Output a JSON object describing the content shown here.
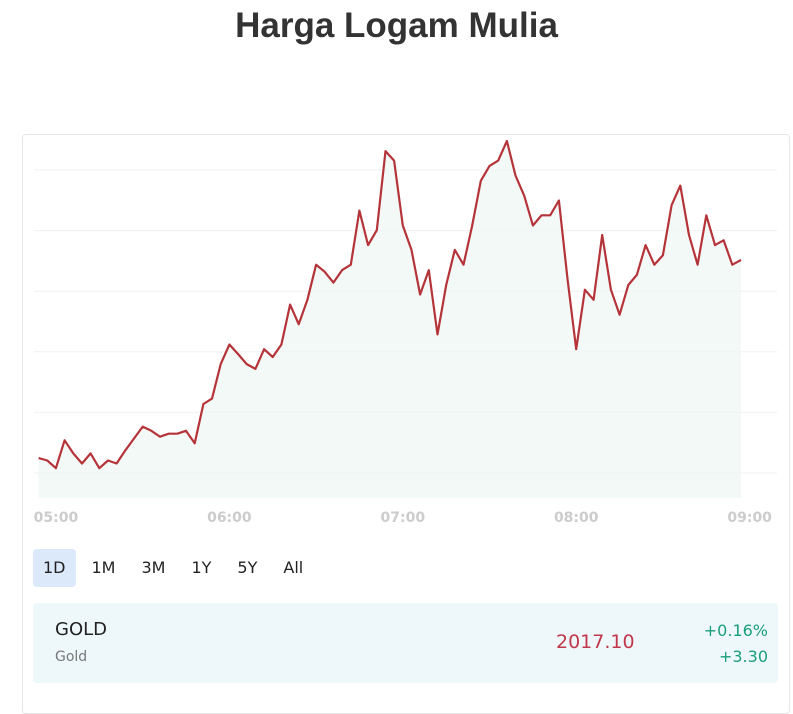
{
  "title": "Harga Logam Mulia",
  "chart_data": {
    "type": "line",
    "x": [
      "04:54",
      "04:57",
      "05:00",
      "05:03",
      "05:06",
      "05:09",
      "05:12",
      "05:15",
      "05:18",
      "05:21",
      "05:24",
      "05:27",
      "05:30",
      "05:33",
      "05:36",
      "05:39",
      "05:42",
      "05:45",
      "05:48",
      "05:51",
      "05:54",
      "05:57",
      "06:00",
      "06:03",
      "06:06",
      "06:09",
      "06:12",
      "06:15",
      "06:18",
      "06:21",
      "06:24",
      "06:27",
      "06:30",
      "06:33",
      "06:36",
      "06:39",
      "06:42",
      "06:45",
      "06:48",
      "06:51",
      "06:54",
      "06:57",
      "07:00",
      "07:03",
      "07:06",
      "07:09",
      "07:12",
      "07:15",
      "07:18",
      "07:21",
      "07:24",
      "07:27",
      "07:30",
      "07:33",
      "07:36",
      "07:39",
      "07:42",
      "07:45",
      "07:48",
      "07:51",
      "07:54",
      "07:57",
      "08:00",
      "08:03",
      "08:06",
      "08:09",
      "08:12",
      "08:15",
      "08:18",
      "08:21",
      "08:24",
      "08:27",
      "08:30",
      "08:33",
      "08:36",
      "08:39",
      "08:42",
      "08:45",
      "08:48",
      "08:51",
      "08:54",
      "08:57"
    ],
    "values": [
      2013.77,
      2013.73,
      2013.6,
      2014.07,
      2013.85,
      2013.68,
      2013.85,
      2013.6,
      2013.73,
      2013.68,
      2013.9,
      2014.1,
      2014.3,
      2014.23,
      2014.13,
      2014.18,
      2014.18,
      2014.23,
      2014.02,
      2014.68,
      2014.77,
      2015.35,
      2015.68,
      2015.52,
      2015.35,
      2015.27,
      2015.6,
      2015.47,
      2015.68,
      2016.35,
      2016.02,
      2016.43,
      2017.02,
      2016.9,
      2016.72,
      2016.93,
      2017.02,
      2017.93,
      2017.35,
      2017.6,
      2018.93,
      2018.77,
      2017.68,
      2017.27,
      2016.52,
      2016.93,
      2015.85,
      2016.68,
      2017.27,
      2017.02,
      2017.68,
      2018.43,
      2018.68,
      2018.77,
      2019.1,
      2018.52,
      2018.18,
      2017.68,
      2017.85,
      2017.85,
      2018.1,
      2016.77,
      2015.6,
      2016.6,
      2016.43,
      2017.52,
      2016.6,
      2016.18,
      2016.68,
      2016.85,
      2017.35,
      2017.02,
      2017.18,
      2018.02,
      2018.35,
      2017.52,
      2017.02,
      2017.85,
      2017.35,
      2017.43,
      2017.02,
      2017.1
    ],
    "color": "#b5343a",
    "xlim": [
      "04:54",
      "09:06"
    ],
    "xticks": [
      "05:00",
      "06:00",
      "07:00",
      "08:00",
      "09:00"
    ],
    "ylim": [
      2013.1,
      2019.2
    ]
  },
  "range_buttons": [
    "1D",
    "1M",
    "3M",
    "1Y",
    "5Y",
    "All"
  ],
  "active_range": "1D",
  "quote": {
    "symbol": "GOLD",
    "name": "Gold",
    "price": "2017.10",
    "change_percent": "+0.16%",
    "change": "+3.30"
  }
}
